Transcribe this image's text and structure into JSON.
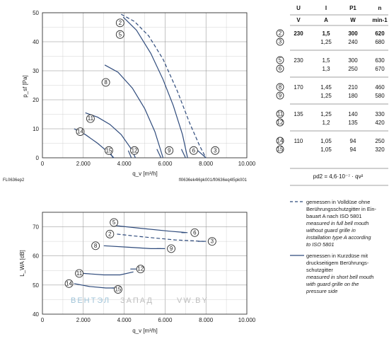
{
  "colors": {
    "curve": "#2f4b7c",
    "grid": "#8a8a8a",
    "text": "#222222",
    "watermark_a": "#9fc3d8",
    "watermark_b": "#bdbdbd"
  },
  "chart_data": [
    {
      "type": "line",
      "title": "",
      "ylabel": "p_sf [Pa]",
      "xlabel": "q_v [m³/h]",
      "xlim": [
        0,
        10000
      ],
      "ylim": [
        0,
        50
      ],
      "xticks": [
        "0",
        "2.000",
        "4.000",
        "6.000",
        "8.000",
        "10.000"
      ],
      "yticks": [
        "0",
        "10",
        "20",
        "30",
        "40",
        "50"
      ],
      "grid": true,
      "note_left": "FL0636ep2",
      "note_right": "fl0636ek4l6pk001/fl0636eq4l5pk001",
      "series": [
        {
          "name": "2",
          "dashed": true,
          "x": [
            3850,
            4500,
            5200,
            5900,
            6600,
            7200,
            7700,
            8000
          ],
          "y": [
            49.5,
            47,
            42,
            34,
            23,
            12,
            4,
            0
          ]
        },
        {
          "name": "3",
          "dashed": false,
          "x": [
            7600,
            8000
          ],
          "y": [
            2.5,
            0
          ]
        },
        {
          "name": "5",
          "dashed": false,
          "x": [
            3950,
            4600,
            5300,
            5900,
            6400,
            6850,
            7100
          ],
          "y": [
            48.5,
            44,
            36,
            27,
            18,
            8,
            0
          ]
        },
        {
          "name": "6",
          "dashed": false,
          "x": [
            6800,
            7000
          ],
          "y": [
            3,
            0
          ]
        },
        {
          "name": "8",
          "dashed": false,
          "x": [
            3050,
            3700,
            4400,
            5000,
            5500,
            5900
          ],
          "y": [
            32,
            29.5,
            24,
            17,
            9,
            0
          ]
        },
        {
          "name": "9",
          "dashed": false,
          "x": [
            5600,
            5800
          ],
          "y": [
            3,
            0
          ]
        },
        {
          "name": "11",
          "dashed": false,
          "x": [
            2100,
            2700,
            3300,
            3850,
            4300,
            4550
          ],
          "y": [
            15.5,
            14,
            11.5,
            8,
            3.5,
            0
          ]
        },
        {
          "name": "12",
          "dashed": false,
          "x": [
            4200,
            4350
          ],
          "y": [
            2.5,
            0
          ]
        },
        {
          "name": "14",
          "dashed": false,
          "x": [
            1550,
            2100,
            2700,
            3200,
            3500
          ],
          "y": [
            10,
            8,
            5,
            2,
            0
          ]
        },
        {
          "name": "15",
          "dashed": false,
          "x": [
            3300,
            3450
          ],
          "y": [
            2,
            0
          ]
        }
      ]
    },
    {
      "type": "line",
      "title": "",
      "ylabel": "L_WA [dB]",
      "xlabel": "q_v [m³/h]",
      "xlim": [
        0,
        10000
      ],
      "ylim": [
        40,
        75
      ],
      "xticks": [
        "0",
        "2.000",
        "4.000",
        "6.000",
        "8.000",
        "10.000"
      ],
      "yticks": [
        "40",
        "50",
        "60",
        "70"
      ],
      "grid": true,
      "series": [
        {
          "name": "2",
          "dashed": true,
          "x": [
            3650,
            5000,
            6500,
            7900
          ],
          "y": [
            67.5,
            66.5,
            65.5,
            65
          ]
        },
        {
          "name": "3",
          "dashed": false,
          "x": [
            7600,
            8000
          ],
          "y": [
            65,
            65
          ]
        },
        {
          "name": "5",
          "dashed": false,
          "x": [
            3450,
            4800,
            6200,
            7100
          ],
          "y": [
            70.5,
            69.5,
            68.5,
            68
          ]
        },
        {
          "name": "6",
          "dashed": false,
          "x": [
            6800,
            7000
          ],
          "y": [
            68,
            68
          ]
        },
        {
          "name": "8",
          "dashed": false,
          "x": [
            3000,
            4200,
            5300,
            6000
          ],
          "y": [
            63.5,
            63,
            62.5,
            62.5
          ]
        },
        {
          "name": "9",
          "dashed": false,
          "x": [
            5600,
            5800
          ],
          "y": [
            62.5,
            62.5
          ]
        },
        {
          "name": "11",
          "dashed": false,
          "x": [
            2000,
            3000,
            3800,
            4450
          ],
          "y": [
            54,
            53.5,
            53.5,
            54.5
          ]
        },
        {
          "name": "12",
          "dashed": false,
          "x": [
            4300,
            4600
          ],
          "y": [
            55.5,
            55.5
          ]
        },
        {
          "name": "14",
          "dashed": false,
          "x": [
            1550,
            2300,
            3100,
            3500
          ],
          "y": [
            50.5,
            49.5,
            49,
            49
          ]
        },
        {
          "name": "15",
          "dashed": false,
          "x": [
            3400,
            3600
          ],
          "y": [
            49,
            49
          ]
        }
      ]
    }
  ],
  "labels1": [
    {
      "t": "2",
      "x": 3800,
      "y": 46.5
    },
    {
      "t": "5",
      "x": 3800,
      "y": 42.5
    },
    {
      "t": "8",
      "x": 3100,
      "y": 26
    },
    {
      "t": "11",
      "x": 2350,
      "y": 13.5
    },
    {
      "t": "14",
      "x": 1850,
      "y": 9
    },
    {
      "t": "15",
      "x": 3250,
      "y": 2.5
    },
    {
      "t": "12",
      "x": 4500,
      "y": 2.5
    },
    {
      "t": "9",
      "x": 6200,
      "y": 2.5
    },
    {
      "t": "6",
      "x": 7400,
      "y": 2.5
    },
    {
      "t": "3",
      "x": 8450,
      "y": 2.5
    }
  ],
  "labels2": [
    {
      "t": "5",
      "x": 3500,
      "y": 71.5
    },
    {
      "t": "6",
      "x": 7450,
      "y": 68
    },
    {
      "t": "2",
      "x": 3300,
      "y": 67.5
    },
    {
      "t": "3",
      "x": 8300,
      "y": 65
    },
    {
      "t": "8",
      "x": 2600,
      "y": 63.5
    },
    {
      "t": "9",
      "x": 6300,
      "y": 62.5
    },
    {
      "t": "11",
      "x": 1800,
      "y": 54
    },
    {
      "t": "12",
      "x": 4800,
      "y": 55.5
    },
    {
      "t": "14",
      "x": 1300,
      "y": 50.5
    },
    {
      "t": "15",
      "x": 3700,
      "y": 48.5
    }
  ],
  "table": {
    "head1": [
      "U",
      "I",
      "P1",
      "n"
    ],
    "head2": [
      "V",
      "A",
      "W",
      "min-1"
    ],
    "groups": [
      {
        "rows": [
          {
            "id": "2",
            "U": "230",
            "I": "1,5",
            "P": "300",
            "n": "620",
            "bold": true
          },
          {
            "id": "3",
            "U": "",
            "I": "1,25",
            "P": "240",
            "n": "680",
            "bold": false
          }
        ]
      },
      {
        "rows": [
          {
            "id": "5",
            "U": "230",
            "I": "1,5",
            "P": "300",
            "n": "630",
            "bold": false
          },
          {
            "id": "6",
            "U": "",
            "I": "1,3",
            "P": "250",
            "n": "670",
            "bold": false
          }
        ]
      },
      {
        "rows": [
          {
            "id": "8",
            "U": "170",
            "I": "1,45",
            "P": "210",
            "n": "460",
            "bold": false
          },
          {
            "id": "9",
            "U": "",
            "I": "1,25",
            "P": "180",
            "n": "580",
            "bold": false
          }
        ]
      },
      {
        "rows": [
          {
            "id": "11",
            "U": "135",
            "I": "1,25",
            "P": "140",
            "n": "330",
            "bold": false
          },
          {
            "id": "12",
            "U": "",
            "I": "1,2",
            "P": "135",
            "n": "420",
            "bold": false
          }
        ]
      },
      {
        "rows": [
          {
            "id": "14",
            "U": "110",
            "I": "1,05",
            "P": "94",
            "n": "250",
            "bold": false
          },
          {
            "id": "15",
            "U": "",
            "I": "1,05",
            "P": "94",
            "n": "320",
            "bold": false
          }
        ]
      }
    ],
    "formula": "pd2 = 4,6·10⁻⁷ · qv²"
  },
  "legend": {
    "dashed": [
      "gemessen in Volldüse ohne",
      "Berührungsschutzgitter in Ein-",
      "bauart A nach ISO 5801"
    ],
    "dashed_en": [
      "measured in full bell mouth",
      "without guard grille in",
      "installation type A according",
      "to ISO 5801"
    ],
    "solid": [
      "gemessen in Kurzdüse mit",
      "druckseitigem Berührungs-",
      "schutzgitter"
    ],
    "solid_en": [
      "measured in short bell mouth",
      "with guard grille on the",
      "pressure side"
    ]
  },
  "watermark": {
    "a": "ВЕНТЭЛ",
    "b": "ЗАПАД",
    "c": "VW.BY"
  }
}
